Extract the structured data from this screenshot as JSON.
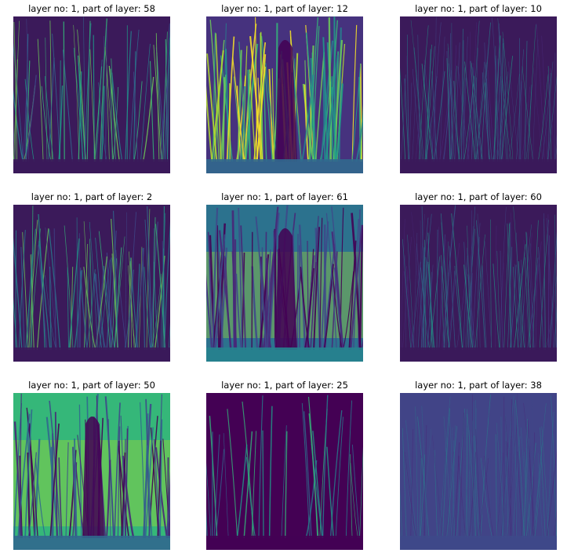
{
  "figure": {
    "panels": [
      {
        "title": "layer no: 1, part of layer: 58",
        "style": "edges-sparse",
        "bg": "#3b1a5a"
      },
      {
        "title": "layer no: 1, part of layer: 12",
        "style": "bright-grass",
        "bg": "#46327e"
      },
      {
        "title": "layer no: 1, part of layer: 10",
        "style": "edges-fine",
        "bg": "#3b1a5a"
      },
      {
        "title": "layer no: 1, part of layer: 2",
        "style": "edges-medium",
        "bg": "#3b1a5a"
      },
      {
        "title": "layer no: 1, part of layer: 61",
        "style": "inverted-bright",
        "bg": "#2c728e"
      },
      {
        "title": "layer no: 1, part of layer: 60",
        "style": "edges-fine",
        "bg": "#3b1a5a"
      },
      {
        "title": "layer no: 1, part of layer: 50",
        "style": "very-bright",
        "bg": "#35b779"
      },
      {
        "title": "layer no: 1, part of layer: 25",
        "style": "dark-sparse",
        "bg": "#440154"
      },
      {
        "title": "layer no: 1, part of layer: 38",
        "style": "emboss",
        "bg": "#414487"
      }
    ],
    "colormap": [
      "#440154",
      "#482878",
      "#3e4989",
      "#31688e",
      "#26828e",
      "#1f9e89",
      "#35b779",
      "#6ece58",
      "#b5de2b",
      "#fde725"
    ]
  }
}
